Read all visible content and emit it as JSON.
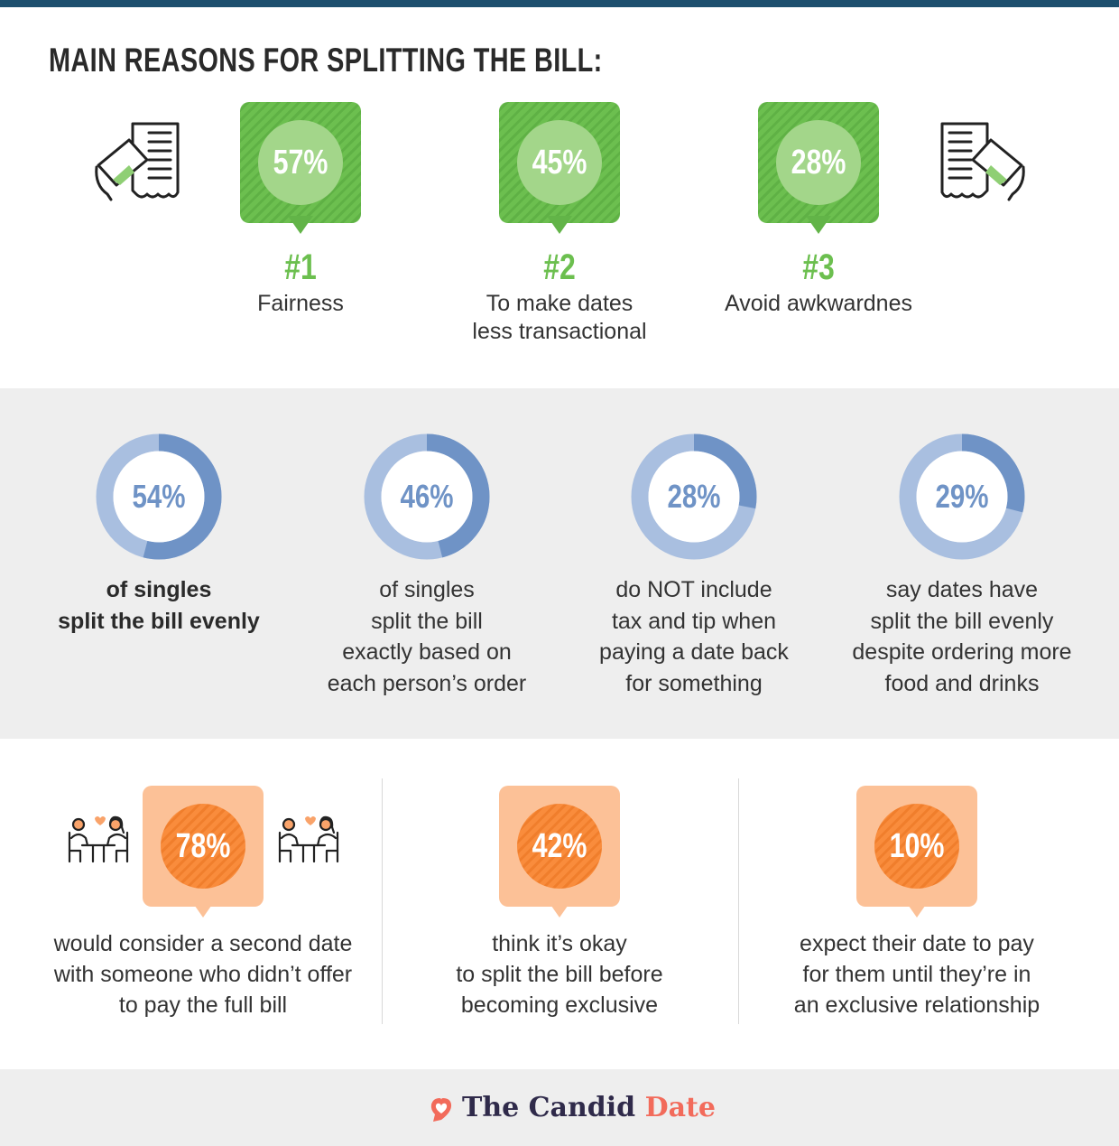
{
  "title": "MAIN REASONS FOR SPLITTING THE BILL:",
  "colors": {
    "top_bar": "#1d4f6e",
    "green": "#6cbf4f",
    "blue": "#6f93c6",
    "orange": "#f98c3c",
    "brand_accent": "#f26b5b"
  },
  "chart_data": [
    {
      "type": "bar",
      "title": "MAIN REASONS FOR SPLITTING THE BILL:",
      "categories": [
        "Fairness",
        "To make dates less transactional",
        "Avoid awkwardnes"
      ],
      "values": [
        57,
        45,
        28
      ],
      "ranks": [
        "#1",
        "#2",
        "#3"
      ]
    },
    {
      "type": "pie",
      "categories": [
        "of singles split the bill evenly",
        "of singles split the bill exactly based on each person’s order",
        "do NOT include tax and tip when paying a date back for something",
        "say dates have split the bill evenly despite ordering more food and drinks"
      ],
      "values": [
        54,
        46,
        28,
        29
      ]
    },
    {
      "type": "bar",
      "categories": [
        "would consider a second date with someone who didn’t offer to pay the full bill",
        "think it’s okay to split the bill before becoming exclusive",
        "expect their date to pay for them until they’re in an exclusive relationship"
      ],
      "values": [
        78,
        42,
        10
      ]
    }
  ],
  "reasons": [
    {
      "pct": "57%",
      "rank": "#1",
      "label_lines": [
        "Fairness"
      ]
    },
    {
      "pct": "45%",
      "rank": "#2",
      "label_lines": [
        "To make dates",
        "less transactional"
      ]
    },
    {
      "pct": "28%",
      "rank": "#3",
      "label_lines": [
        "Avoid awkwardnes"
      ]
    }
  ],
  "donuts": [
    {
      "value": 54,
      "pct": "54%",
      "lines": [
        "of singles",
        "split the bill evenly"
      ],
      "bold": true
    },
    {
      "value": 46,
      "pct": "46%",
      "lines": [
        "of singles",
        "split the bill",
        "exactly based on",
        "each person’s order"
      ],
      "bold": false
    },
    {
      "value": 28,
      "pct": "28%",
      "lines": [
        "do NOT include",
        "tax and tip when",
        "paying a date back",
        "for something"
      ],
      "bold": false
    },
    {
      "value": 29,
      "pct": "29%",
      "lines": [
        "say dates have",
        "split the bill evenly",
        "despite ordering more",
        "food and drinks"
      ],
      "bold": false
    }
  ],
  "bottom_stats": [
    {
      "pct": "78%",
      "lines": [
        "would consider a second date",
        "with someone who didn’t offer",
        "to pay the full bill"
      ]
    },
    {
      "pct": "42%",
      "lines": [
        "think it’s okay",
        "to split the bill before",
        "becoming exclusive"
      ]
    },
    {
      "pct": "10%",
      "lines": [
        "expect their date to pay",
        "for them until they’re in",
        "an exclusive relationship"
      ]
    }
  ],
  "icons": [
    "receipt-card-icon",
    "couple-dinner-icon",
    "heart-logo-icon"
  ],
  "footer": {
    "brand_main": "The Candid ",
    "brand_accent": "Date"
  }
}
